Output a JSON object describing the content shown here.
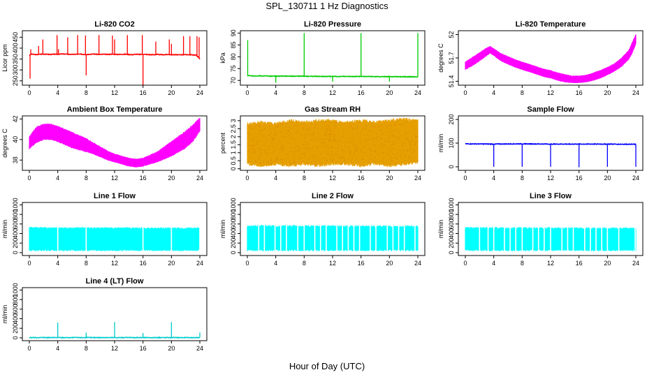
{
  "title": "SPL_130711  1 Hz Diagnostics",
  "xlabel": "Hour of Day (UTC)",
  "chart_data": [
    {
      "type": "line",
      "title": "Li-820 CO2",
      "ylabel": "Licor ppm",
      "xlim": [
        0,
        24
      ],
      "ylim": [
        230,
        480
      ],
      "xticks": [
        0,
        4,
        8,
        12,
        16,
        20,
        24
      ],
      "yticks": [
        250,
        300,
        350,
        400,
        450
      ],
      "color": "#ff0000",
      "series": [
        {
          "baseline": 370,
          "x": [
            0,
            0.2,
            0.5,
            1,
            1.5,
            2,
            2.5,
            3,
            3.5,
            4,
            4.5,
            5,
            5.5,
            6,
            6.5,
            7,
            7.5,
            8,
            8.5,
            9,
            9.5,
            10,
            10.5,
            11,
            11.5,
            12,
            12.5,
            13,
            13.5,
            14,
            14.5,
            15,
            15.5,
            16,
            16.5,
            17,
            17.5,
            18,
            18.5,
            19,
            19.5,
            20,
            20.5,
            21,
            21.5,
            22,
            22.5,
            23,
            23.5,
            24
          ],
          "y": [
            365,
            372,
            372,
            370,
            372,
            373,
            372,
            371,
            372,
            372,
            373,
            373,
            372,
            371,
            372,
            372,
            372,
            371,
            372,
            373,
            372,
            371,
            372,
            371,
            372,
            372,
            371,
            372,
            372,
            371,
            370,
            372,
            371,
            372,
            371,
            370,
            370,
            371,
            370,
            370,
            371,
            370,
            370,
            369,
            370,
            370,
            370,
            369,
            368,
            350
          ]
        }
      ],
      "spikes": [
        {
          "x": 0.1,
          "y": 260
        },
        {
          "x": 0.2,
          "y": 395
        },
        {
          "x": 1.3,
          "y": 410
        },
        {
          "x": 1.9,
          "y": 440
        },
        {
          "x": 3.9,
          "y": 460
        },
        {
          "x": 4.1,
          "y": 395
        },
        {
          "x": 5.4,
          "y": 450
        },
        {
          "x": 6.8,
          "y": 460
        },
        {
          "x": 7.9,
          "y": 458
        },
        {
          "x": 8.0,
          "y": 275
        },
        {
          "x": 9.8,
          "y": 460
        },
        {
          "x": 11.7,
          "y": 458
        },
        {
          "x": 12.0,
          "y": 440
        },
        {
          "x": 13.8,
          "y": 460
        },
        {
          "x": 15.9,
          "y": 460
        },
        {
          "x": 16.0,
          "y": 230
        },
        {
          "x": 17.8,
          "y": 430
        },
        {
          "x": 19.7,
          "y": 440
        },
        {
          "x": 20.0,
          "y": 420
        },
        {
          "x": 21.7,
          "y": 455
        },
        {
          "x": 22.6,
          "y": 455
        },
        {
          "x": 23.6,
          "y": 455
        },
        {
          "x": 23.9,
          "y": 450
        }
      ]
    },
    {
      "type": "line",
      "title": "Li-820 Pressure",
      "ylabel": "kPa",
      "xlim": [
        0,
        24
      ],
      "ylim": [
        68,
        91
      ],
      "xticks": [
        0,
        4,
        8,
        12,
        16,
        20,
        24
      ],
      "yticks": [
        70,
        75,
        80,
        85,
        90
      ],
      "color": "#00cc00",
      "series": [
        {
          "baseline": 72,
          "x": [
            0,
            0.3,
            1,
            2,
            4,
            6,
            8,
            10,
            12,
            14,
            16,
            18,
            20,
            22,
            24
          ],
          "y": [
            72,
            72,
            71.9,
            71.9,
            71.8,
            71.8,
            71.8,
            71.7,
            71.7,
            71.7,
            71.7,
            71.6,
            71.6,
            71.6,
            71.5
          ]
        }
      ],
      "spikes": [
        {
          "x": 0.05,
          "y": 87
        },
        {
          "x": 4.0,
          "y": 69
        },
        {
          "x": 8.0,
          "y": 90
        },
        {
          "x": 12.0,
          "y": 69.5
        },
        {
          "x": 16.0,
          "y": 90
        },
        {
          "x": 20.0,
          "y": 69.5
        },
        {
          "x": 24.0,
          "y": 90
        }
      ]
    },
    {
      "type": "area",
      "title": "Li-820 Temperature",
      "ylabel": "degrees C",
      "xlim": [
        0,
        24
      ],
      "ylim": [
        51.35,
        52.05
      ],
      "xticks": [
        0,
        4,
        8,
        12,
        16,
        20,
        24
      ],
      "yticks": [
        51.4,
        51.7,
        52.0
      ],
      "color": "#ff00ff",
      "band": {
        "x": [
          0,
          1,
          2,
          3,
          3.5,
          4,
          5,
          6,
          7,
          8,
          9,
          10,
          11,
          12,
          13,
          14,
          15,
          16,
          17,
          18,
          19,
          20,
          21,
          22,
          23,
          23.5,
          24
        ],
        "low": [
          51.55,
          51.6,
          51.66,
          51.73,
          51.76,
          51.73,
          51.66,
          51.62,
          51.58,
          51.55,
          51.52,
          51.49,
          51.46,
          51.44,
          51.41,
          51.39,
          51.38,
          51.38,
          51.39,
          51.41,
          51.44,
          51.48,
          51.53,
          51.59,
          51.68,
          51.76,
          51.88
        ],
        "high": [
          51.65,
          51.71,
          51.77,
          51.83,
          51.85,
          51.82,
          51.76,
          51.72,
          51.68,
          51.65,
          51.62,
          51.59,
          51.56,
          51.54,
          51.51,
          51.49,
          51.47,
          51.47,
          51.48,
          51.51,
          51.54,
          51.58,
          51.63,
          51.7,
          51.8,
          51.9,
          52.0
        ]
      }
    },
    {
      "type": "area",
      "title": "Ambient Box Temperature",
      "ylabel": "degrees C",
      "xlim": [
        0,
        24
      ],
      "ylim": [
        37,
        42.3
      ],
      "xticks": [
        0,
        4,
        8,
        12,
        16,
        20,
        24
      ],
      "yticks": [
        38,
        40,
        42
      ],
      "color": "#ff00ff",
      "band": {
        "x": [
          0,
          1,
          2,
          3,
          4,
          5,
          6,
          7,
          8,
          9,
          10,
          11,
          12,
          13,
          14,
          15,
          16,
          17,
          18,
          19,
          20,
          21,
          22,
          23,
          24
        ],
        "low": [
          39.1,
          39.7,
          40.0,
          40.0,
          39.8,
          39.5,
          39.2,
          39.0,
          38.8,
          38.6,
          38.3,
          38.0,
          37.8,
          37.6,
          37.4,
          37.3,
          37.4,
          37.6,
          37.8,
          38.1,
          38.4,
          38.8,
          39.2,
          39.8,
          40.8
        ],
        "high": [
          40.3,
          41.2,
          41.5,
          41.5,
          41.3,
          41.0,
          40.7,
          40.4,
          40.1,
          39.7,
          39.3,
          38.9,
          38.6,
          38.4,
          38.2,
          38.1,
          38.2,
          38.5,
          38.8,
          39.3,
          39.8,
          40.3,
          40.8,
          41.4,
          42.1
        ]
      }
    },
    {
      "type": "area",
      "title": "Gas Stream RH",
      "ylabel": "percent",
      "xlim": [
        0,
        24
      ],
      "ylim": [
        -0.1,
        3.3
      ],
      "xticks": [
        0,
        4,
        8,
        12,
        16,
        20,
        24
      ],
      "yticks": [
        0.0,
        0.5,
        1.0,
        1.5,
        2.0,
        2.5,
        3.0
      ],
      "color": "#e69f00",
      "band": {
        "x": [
          0,
          2,
          4,
          6,
          8,
          10,
          12,
          14,
          16,
          18,
          20,
          22,
          24
        ],
        "low": [
          0.3,
          0.2,
          0.3,
          0.2,
          0.3,
          0.2,
          0.3,
          0.3,
          0.2,
          0.3,
          0.2,
          0.3,
          0.4
        ],
        "high": [
          2.8,
          2.9,
          2.8,
          3.0,
          2.9,
          3.0,
          3.0,
          2.9,
          3.0,
          2.9,
          3.0,
          3.1,
          3.0
        ]
      }
    },
    {
      "type": "line",
      "title": "Sample Flow",
      "ylabel": "ml/min",
      "xlim": [
        0,
        24
      ],
      "ylim": [
        -15,
        215
      ],
      "xticks": [
        0,
        4,
        8,
        12,
        16,
        20,
        24
      ],
      "yticks": [
        0,
        100,
        200
      ],
      "color": "#0000ff",
      "series": [
        {
          "baseline": 96,
          "x": [
            0,
            4,
            8,
            12,
            16,
            20,
            24
          ],
          "y": [
            97,
            96,
            97,
            96,
            96,
            96,
            95
          ]
        }
      ],
      "spikes": [
        {
          "x": 4.0,
          "y": 0
        },
        {
          "x": 8.0,
          "y": 0
        },
        {
          "x": 12.0,
          "y": 0
        },
        {
          "x": 16.0,
          "y": -2
        },
        {
          "x": 20.0,
          "y": 0
        },
        {
          "x": 24.0,
          "y": 0
        }
      ]
    },
    {
      "type": "area",
      "title": "Line 1 Flow",
      "ylabel": "ml/min",
      "xlim": [
        0,
        24
      ],
      "ylim": [
        -60,
        1050
      ],
      "xticks": [
        0,
        4,
        8,
        12,
        16,
        20,
        24
      ],
      "yticks": [
        0,
        200,
        400,
        600,
        800,
        1000
      ],
      "color": "#00ffff",
      "band": {
        "x": [
          0,
          24
        ],
        "low": [
          50,
          50
        ],
        "high": [
          520,
          510
        ]
      },
      "gaps": [
        4,
        8,
        16,
        20,
        24
      ]
    },
    {
      "type": "area",
      "title": "Line 2 Flow",
      "ylabel": "ml/min",
      "xlim": [
        0,
        24
      ],
      "ylim": [
        -60,
        1050
      ],
      "xticks": [
        0,
        4,
        8,
        12,
        16,
        20,
        24
      ],
      "yticks": [
        0,
        200,
        400,
        600,
        800,
        1000
      ],
      "color": "#00ffff",
      "band": {
        "x": [
          0,
          24
        ],
        "low": [
          50,
          50
        ],
        "high": [
          560,
          550
        ]
      },
      "gaps": [
        1.6,
        2.4,
        3.9,
        4.7,
        5.5,
        7.1,
        8.0,
        9.5,
        10.3,
        11.1,
        12.6,
        13.4,
        14.2,
        15.0,
        15.8,
        17.3,
        18.1,
        19.7,
        20.5,
        21.3,
        22.1,
        23.6
      ]
    },
    {
      "type": "area",
      "title": "Line 3 Flow",
      "ylabel": "ml/min",
      "xlim": [
        0,
        24
      ],
      "ylim": [
        -60,
        1050
      ],
      "xticks": [
        0,
        4,
        8,
        12,
        16,
        20,
        24
      ],
      "yticks": [
        0,
        200,
        400,
        600,
        800,
        1000
      ],
      "color": "#00ffff",
      "band": {
        "x": [
          0,
          24
        ],
        "low": [
          50,
          50
        ],
        "high": [
          520,
          510
        ]
      },
      "gaps": [
        2.0,
        3.2,
        4.0,
        5.5,
        6.3,
        7.1,
        8.0,
        9.5,
        10.3,
        11.1,
        12.0,
        13.6,
        14.4,
        15.2,
        16.8,
        17.6,
        18.4,
        19.2,
        20.0,
        21.6,
        23.9
      ]
    },
    {
      "type": "line",
      "title": "Line 4 (LT) Flow",
      "ylabel": "ml/min",
      "xlim": [
        0,
        24
      ],
      "ylim": [
        -60,
        1050
      ],
      "xticks": [
        0,
        4,
        8,
        12,
        16,
        20,
        24
      ],
      "yticks": [
        0,
        200,
        400,
        600,
        800,
        1000
      ],
      "color": "#00cccc",
      "series": [
        {
          "baseline": 5,
          "x": [
            0,
            24
          ],
          "y": [
            5,
            5
          ]
        }
      ],
      "spikes": [
        {
          "x": 4.0,
          "y": 320
        },
        {
          "x": 8.0,
          "y": 110
        },
        {
          "x": 12.0,
          "y": 330
        },
        {
          "x": 16.0,
          "y": 100
        },
        {
          "x": 20.0,
          "y": 330
        },
        {
          "x": 24.0,
          "y": 110
        }
      ]
    }
  ]
}
